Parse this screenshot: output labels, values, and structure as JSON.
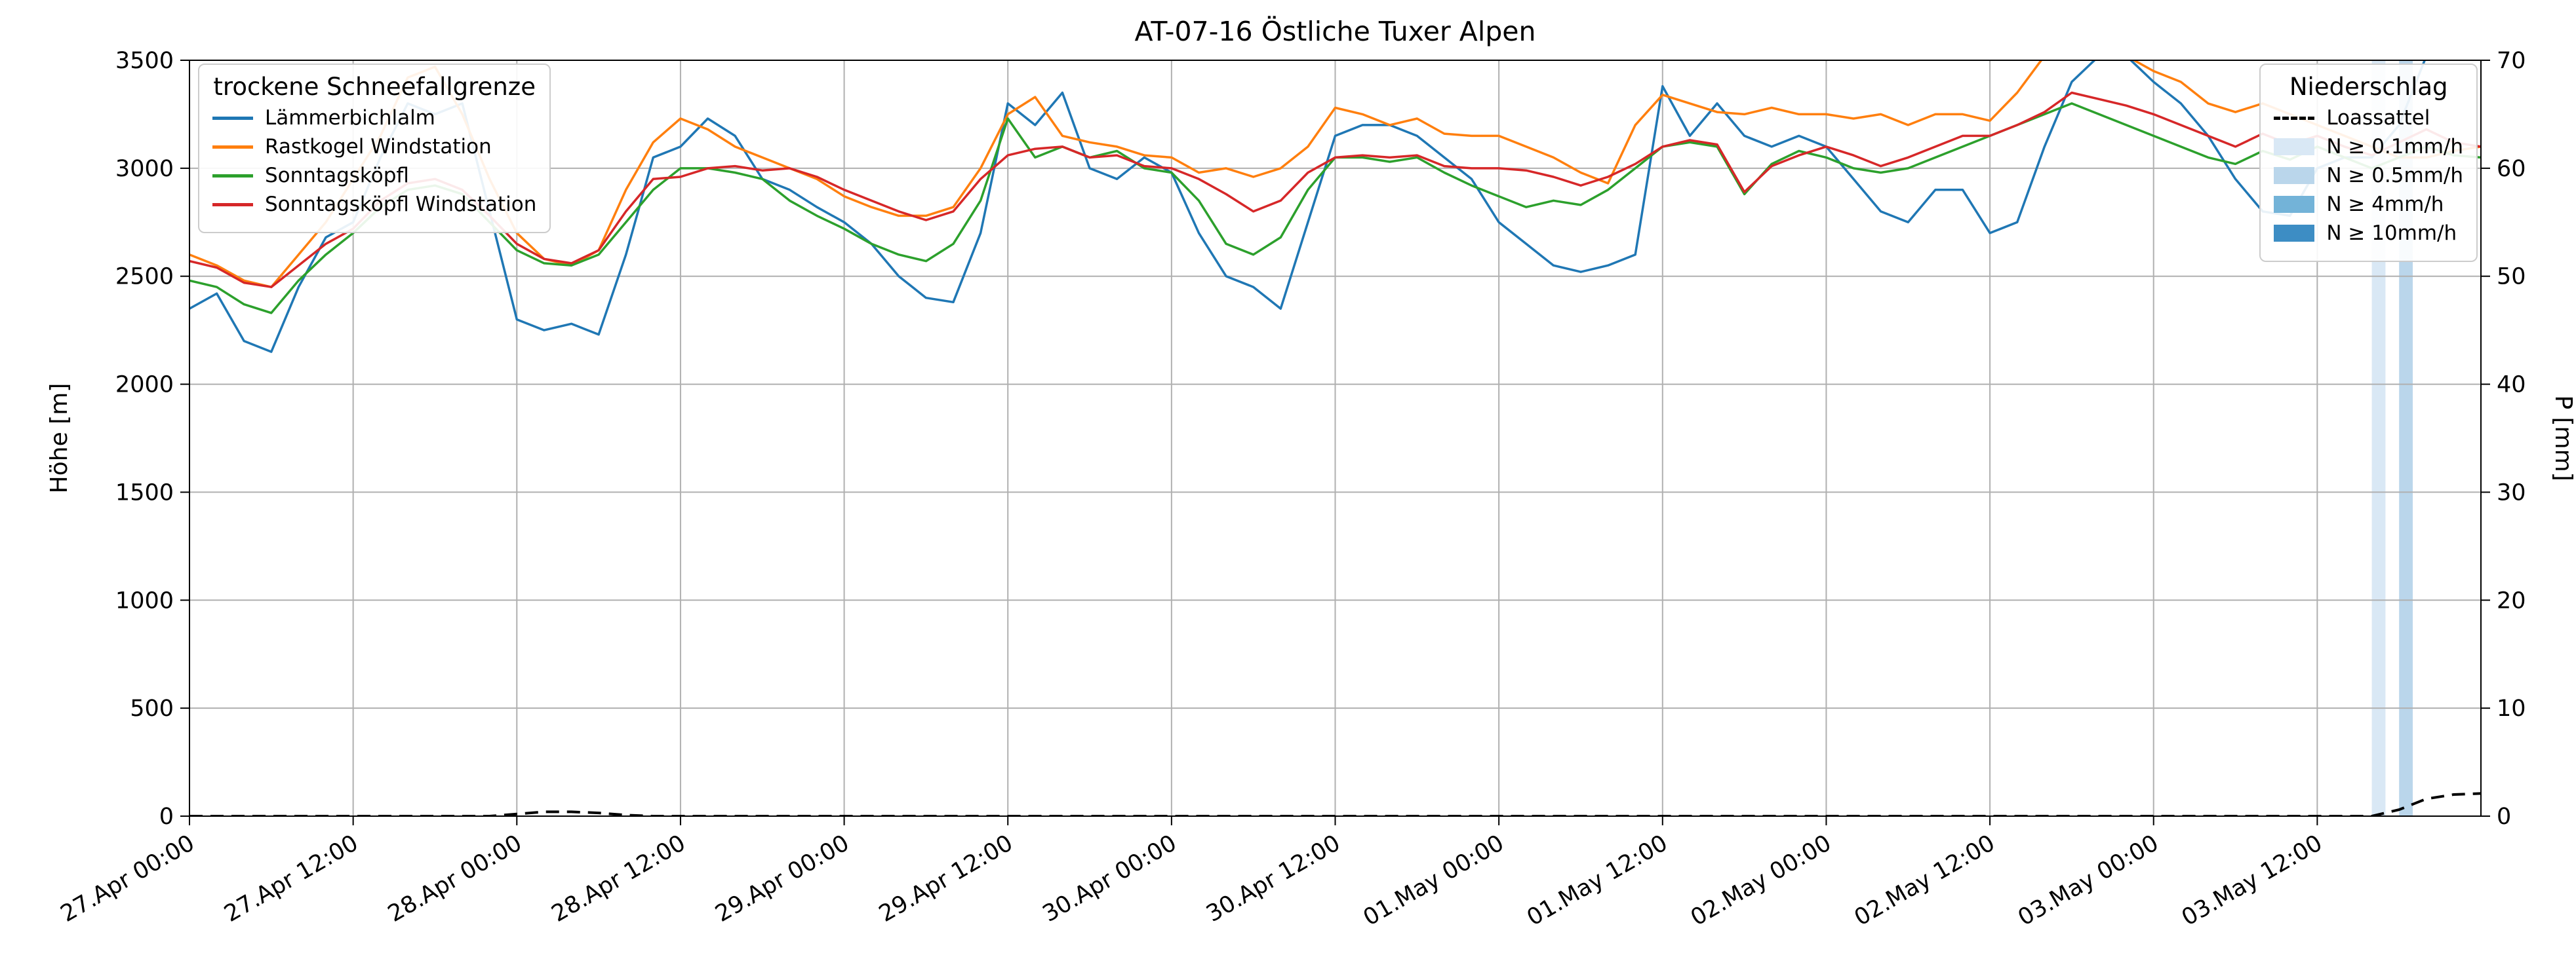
{
  "legends": {
    "left": {
      "title": "trockene Schneefallgrenze"
    },
    "right": {
      "title": "Niederschlag",
      "items": {
        "0": {
          "label": "Loassattel"
        }
      }
    }
  },
  "chart_data": {
    "type": "line",
    "title": "AT-07-16 Östliche Tuxer Alpen",
    "ylabel_left": "Höhe [m]",
    "ylabel_right": "P [mm]",
    "ylim_left": [
      0,
      3500
    ],
    "ylim_right": [
      0,
      70
    ],
    "grid": true,
    "legend_position": "upper left / upper right inside plot",
    "x_unit": "hours since 27.Apr 00:00",
    "x_range_hours": [
      0,
      168
    ],
    "x_tick_step_hours": 12,
    "x_ticklabels": [
      "27.Apr 00:00",
      "27.Apr 12:00",
      "28.Apr 00:00",
      "28.Apr 12:00",
      "29.Apr 00:00",
      "29.Apr 12:00",
      "30.Apr 00:00",
      "30.Apr 12:00",
      "01.May 00:00",
      "01.May 12:00",
      "02.May 00:00",
      "02.May 12:00",
      "03.May 00:00",
      "03.May 12:00"
    ],
    "y_left_ticks": [
      0,
      500,
      1000,
      1500,
      2000,
      2500,
      3000,
      3500
    ],
    "y_right_ticks": [
      0,
      10,
      20,
      30,
      40,
      50,
      60,
      70
    ],
    "sample_step_hours": 2,
    "series": [
      {
        "name": "Lämmerbichlalm",
        "color": "#1f77b4",
        "values": [
          2350,
          2420,
          2200,
          2150,
          2450,
          2680,
          2750,
          3050,
          3300,
          3250,
          3300,
          2800,
          2300,
          2250,
          2280,
          2230,
          2600,
          3050,
          3100,
          3230,
          3150,
          2950,
          2900,
          2820,
          2750,
          2650,
          2500,
          2400,
          2380,
          2700,
          3300,
          3200,
          3350,
          3000,
          2950,
          3050,
          2980,
          2700,
          2500,
          2450,
          2350,
          2750,
          3150,
          3200,
          3200,
          3150,
          3050,
          2950,
          2750,
          2650,
          2550,
          2520,
          2550,
          2600,
          3380,
          3150,
          3300,
          3150,
          3100,
          3150,
          3100,
          2950,
          2800,
          2750,
          2900,
          2900,
          2700,
          2750,
          3100,
          3400,
          3520,
          3520,
          3400,
          3300,
          3150,
          2950,
          2800,
          2780,
          3000,
          3050,
          3050,
          3200,
          3520,
          3520,
          3520
        ]
      },
      {
        "name": "Rastkogel Windstation",
        "color": "#ff7f0e",
        "values": [
          2600,
          2550,
          2480,
          2450,
          2600,
          2750,
          2950,
          3150,
          3420,
          3470,
          3250,
          2950,
          2700,
          2580,
          2550,
          2620,
          2900,
          3120,
          3230,
          3180,
          3100,
          3050,
          3000,
          2950,
          2870,
          2820,
          2780,
          2780,
          2820,
          3000,
          3250,
          3330,
          3150,
          3120,
          3100,
          3060,
          3050,
          2980,
          3000,
          2960,
          3000,
          3100,
          3280,
          3250,
          3200,
          3230,
          3160,
          3150,
          3150,
          3100,
          3050,
          2980,
          2930,
          3200,
          3340,
          3300,
          3260,
          3250,
          3280,
          3250,
          3250,
          3230,
          3250,
          3200,
          3250,
          3250,
          3220,
          3350,
          3520,
          3560,
          3560,
          3520,
          3450,
          3400,
          3300,
          3260,
          3300,
          3250,
          3200,
          3150,
          3100,
          3050,
          3050,
          3080,
          3100
        ]
      },
      {
        "name": "Sonntagsköpfl",
        "color": "#2ca02c",
        "values": [
          2480,
          2450,
          2370,
          2330,
          2480,
          2600,
          2700,
          2820,
          2900,
          2920,
          2880,
          2750,
          2620,
          2560,
          2550,
          2600,
          2750,
          2900,
          3000,
          3000,
          2980,
          2950,
          2850,
          2780,
          2720,
          2650,
          2600,
          2570,
          2650,
          2850,
          3230,
          3050,
          3100,
          3050,
          3080,
          3000,
          2980,
          2850,
          2650,
          2600,
          2680,
          2900,
          3050,
          3050,
          3030,
          3050,
          2980,
          2920,
          2870,
          2820,
          2850,
          2830,
          2900,
          3000,
          3100,
          3120,
          3100,
          2880,
          3020,
          3080,
          3050,
          3000,
          2980,
          3000,
          3050,
          3100,
          3150,
          3200,
          3250,
          3300,
          3250,
          3200,
          3150,
          3100,
          3050,
          3020,
          3080,
          3040,
          3100,
          3050,
          3000,
          3050,
          3100,
          3060,
          3050
        ]
      },
      {
        "name": "Sonntagsköpfl Windstation",
        "color": "#d62728",
        "values": [
          2570,
          2540,
          2470,
          2450,
          2550,
          2650,
          2720,
          2850,
          2930,
          2950,
          2900,
          2780,
          2650,
          2580,
          2560,
          2620,
          2800,
          2950,
          2960,
          3000,
          3010,
          2990,
          3000,
          2960,
          2900,
          2850,
          2800,
          2760,
          2800,
          2950,
          3060,
          3090,
          3100,
          3050,
          3060,
          3010,
          3000,
          2950,
          2880,
          2800,
          2850,
          2980,
          3050,
          3060,
          3050,
          3060,
          3010,
          3000,
          3000,
          2990,
          2960,
          2920,
          2960,
          3020,
          3100,
          3130,
          3110,
          2890,
          3010,
          3060,
          3100,
          3060,
          3010,
          3050,
          3100,
          3150,
          3150,
          3200,
          3260,
          3350,
          3320,
          3290,
          3250,
          3200,
          3150,
          3100,
          3160,
          3110,
          3150,
          3100,
          3060,
          3120,
          3180,
          3120,
          3100
        ]
      }
    ],
    "precip_line": {
      "name": "Loassattel",
      "color": "#000000",
      "style": "dashed",
      "axis": "right",
      "values": [
        0,
        0,
        0,
        0,
        0,
        0,
        0,
        0,
        0,
        0,
        0,
        0,
        0.2,
        0.4,
        0.4,
        0.3,
        0.1,
        0,
        0,
        0,
        0,
        0,
        0,
        0,
        0,
        0,
        0,
        0,
        0,
        0,
        0,
        0,
        0,
        0,
        0,
        0,
        0,
        0,
        0,
        0,
        0,
        0,
        0,
        0,
        0,
        0,
        0,
        0,
        0,
        0,
        0,
        0,
        0,
        0,
        0,
        0,
        0,
        0,
        0,
        0,
        0,
        0,
        0,
        0,
        0,
        0,
        0,
        0,
        0,
        0,
        0,
        0,
        0,
        0,
        0,
        0,
        0,
        0,
        0,
        0,
        0,
        0.6,
        1.6,
        2.0,
        2.1
      ]
    },
    "precip_levels": [
      {
        "label": "N ≥ 0.1mm/h",
        "color": "#d9e8f5"
      },
      {
        "label": "N ≥ 0.5mm/h",
        "color": "#bad6eb"
      },
      {
        "label": "N ≥ 4mm/h",
        "color": "#73b3d8"
      },
      {
        "label": "N ≥ 10mm/h",
        "color": "#3d8dc4"
      }
    ],
    "precip_bands": [
      {
        "start_hour": 160,
        "end_hour": 161,
        "level": "N ≥ 0.1mm/h",
        "color": "#d9e8f5"
      },
      {
        "start_hour": 162,
        "end_hour": 163,
        "level": "N ≥ 0.5mm/h",
        "color": "#bad6eb"
      }
    ]
  }
}
